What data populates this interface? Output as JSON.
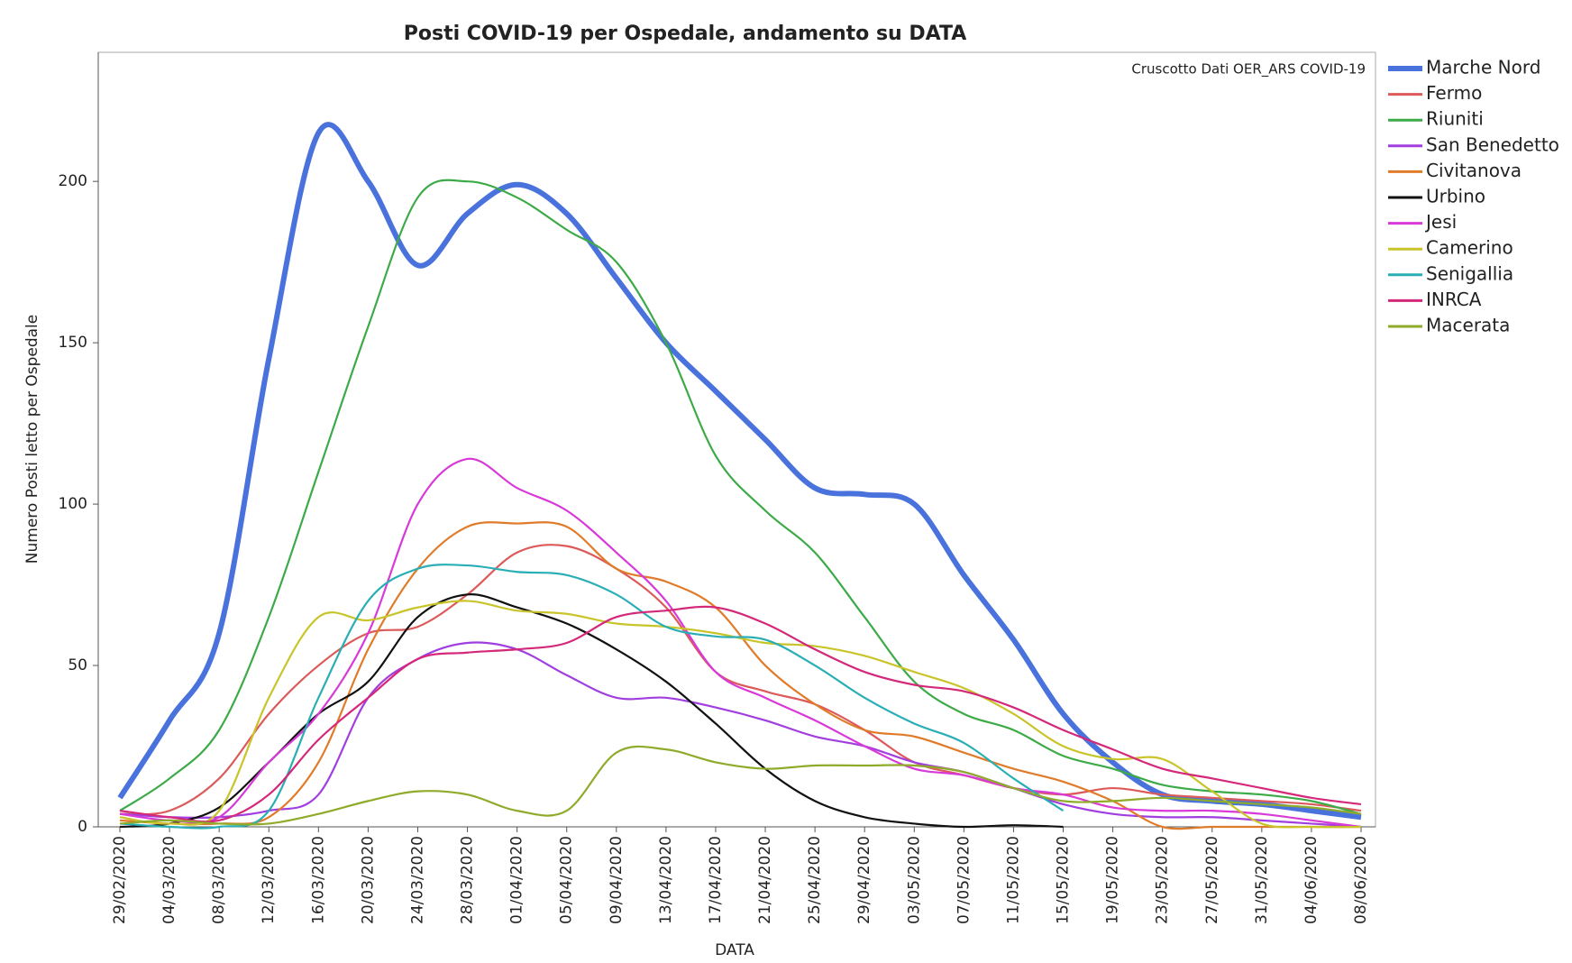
{
  "chart_data": {
    "type": "line",
    "title": "Posti COVID-19 per Ospedale, andamento su DATA",
    "annotation": "Cruscotto Dati OER_ARS COVID-19",
    "x_label": "DATA",
    "y_label": "Numero Posti letto per Ospedale",
    "x": [
      "29/02/2020",
      "04/03/2020",
      "08/03/2020",
      "12/03/2020",
      "16/03/2020",
      "20/03/2020",
      "24/03/2020",
      "28/03/2020",
      "01/04/2020",
      "05/04/2020",
      "09/04/2020",
      "13/04/2020",
      "17/04/2020",
      "21/04/2020",
      "25/04/2020",
      "29/04/2020",
      "03/05/2020",
      "07/05/2020",
      "11/05/2020",
      "15/05/2020",
      "19/05/2020",
      "23/05/2020",
      "27/05/2020",
      "31/05/2020",
      "04/06/2020",
      "08/06/2020"
    ],
    "ylim": [
      0,
      240
    ],
    "yticks": [
      0,
      50,
      100,
      150,
      200
    ],
    "grid": false,
    "series": [
      {
        "name": "Marche Nord",
        "color": "#4a72dc",
        "values": [
          9,
          33,
          60,
          145,
          215,
          200,
          174,
          190,
          199,
          190,
          170,
          150,
          135,
          120,
          105,
          103,
          100,
          78,
          58,
          35,
          20,
          10,
          8,
          7,
          5,
          3
        ]
      },
      {
        "name": "Fermo",
        "color": "#dc5a5a",
        "values": [
          4,
          5,
          15,
          35,
          50,
          60,
          62,
          72,
          85,
          87,
          80,
          68,
          48,
          42,
          38,
          30,
          20,
          16,
          12,
          10,
          12,
          10,
          9,
          8,
          7,
          5
        ]
      },
      {
        "name": "Riuniti",
        "color": "#3daa48",
        "values": [
          5,
          15,
          30,
          65,
          110,
          155,
          195,
          200,
          195,
          185,
          175,
          150,
          115,
          98,
          85,
          65,
          45,
          35,
          30,
          22,
          18,
          13,
          11,
          10,
          8,
          4
        ]
      },
      {
        "name": "San Benedetto",
        "color": "#a13ee0",
        "values": [
          4,
          3,
          3,
          5,
          10,
          40,
          52,
          57,
          55,
          47,
          40,
          40,
          37,
          33,
          28,
          25,
          20,
          17,
          12,
          7,
          4,
          3,
          3,
          2,
          1,
          0
        ]
      },
      {
        "name": "Civitanova",
        "color": "#e07b2a",
        "values": [
          2,
          1,
          1,
          3,
          20,
          55,
          80,
          93,
          94,
          93,
          80,
          76,
          68,
          50,
          38,
          30,
          28,
          23,
          18,
          14,
          8,
          0,
          0,
          0,
          0,
          0
        ]
      },
      {
        "name": "Urbino",
        "color": "#111111",
        "values": [
          0,
          1,
          6,
          20,
          35,
          45,
          65,
          72,
          68,
          63,
          55,
          45,
          32,
          18,
          8,
          3,
          1,
          0,
          0.5,
          0,
          null,
          null,
          null,
          null,
          null,
          null
        ]
      },
      {
        "name": "Jesi",
        "color": "#d83ad8",
        "values": [
          4,
          2,
          3,
          20,
          35,
          60,
          100,
          114,
          105,
          98,
          85,
          70,
          48,
          40,
          33,
          25,
          18,
          16,
          12,
          10,
          6,
          5,
          5,
          4,
          2,
          0
        ]
      },
      {
        "name": "Camerino",
        "color": "#c9c42a",
        "values": [
          3,
          1,
          5,
          40,
          65,
          64,
          68,
          70,
          67,
          66,
          63,
          62,
          60,
          57,
          56,
          53,
          48,
          43,
          35,
          25,
          21,
          21,
          11,
          1,
          0,
          0
        ]
      },
      {
        "name": "Senigallia",
        "color": "#2aaeb6",
        "values": [
          1,
          0,
          0,
          5,
          40,
          70,
          80,
          81,
          79,
          78,
          72,
          62,
          59,
          58,
          50,
          40,
          32,
          26,
          15,
          5,
          null,
          null,
          null,
          null,
          null,
          null
        ]
      },
      {
        "name": "INRCA",
        "color": "#d4287a",
        "values": [
          5,
          3,
          2,
          10,
          27,
          40,
          52,
          54,
          55,
          57,
          65,
          67,
          68,
          63,
          55,
          48,
          44,
          42,
          37,
          30,
          24,
          18,
          15,
          12,
          9,
          7
        ]
      },
      {
        "name": "Macerata",
        "color": "#8fab2a",
        "values": [
          1,
          2,
          1,
          1,
          4,
          8,
          11,
          10,
          5,
          5,
          23,
          24,
          20,
          18,
          19,
          19,
          19,
          17,
          12,
          8,
          8,
          9,
          8,
          7,
          6,
          4
        ]
      }
    ]
  }
}
